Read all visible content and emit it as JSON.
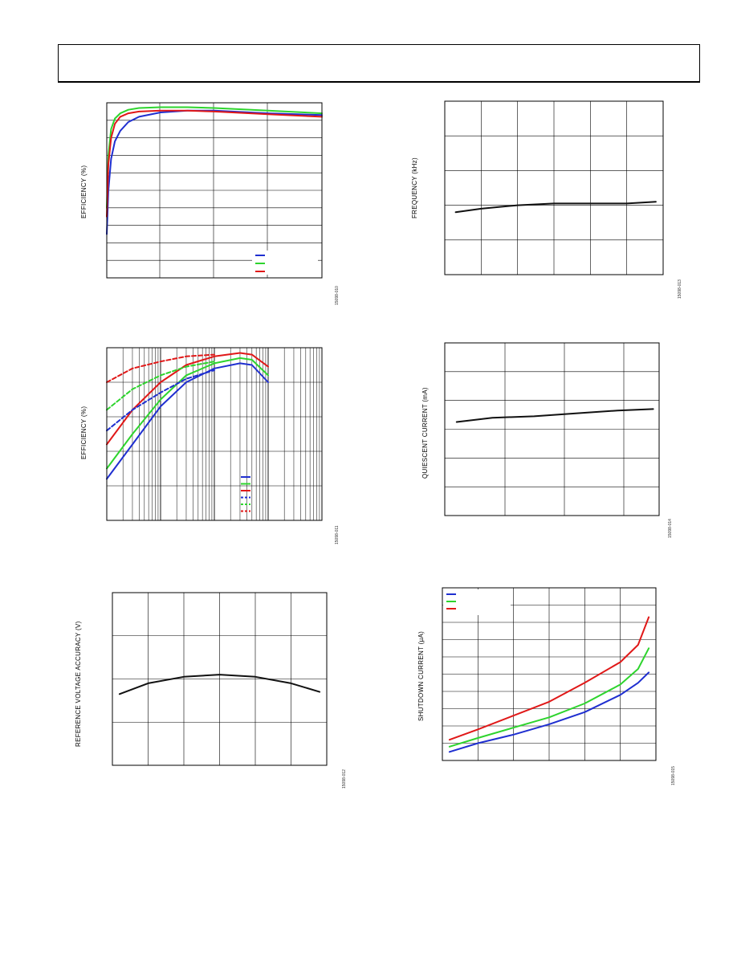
{
  "page": {
    "header_text": ""
  },
  "figures": [
    {
      "id": "fig10",
      "ylabel": "EFFICIENCY (%)",
      "fig_code": "15098-010"
    },
    {
      "id": "fig11",
      "ylabel": "EFFICIENCY (%)",
      "fig_code": "15098-011"
    },
    {
      "id": "fig12",
      "ylabel": "REFERENCE VOLTAGE ACCURACY (V)",
      "fig_code": "15098-012"
    },
    {
      "id": "fig13",
      "ylabel": "FREQUENCY (kHz)",
      "fig_code": "15098-013"
    },
    {
      "id": "fig14",
      "ylabel": "QUIESCENT CURRENT (mA)",
      "fig_code": "15098-014"
    },
    {
      "id": "fig15",
      "ylabel": "SHUTDOWN CURRENT (µA)",
      "fig_code": "15098-015"
    }
  ],
  "colors": {
    "blue": "#1f2fd0",
    "green": "#2ed42e",
    "red": "#e01818",
    "black": "#111111",
    "grid": "#000000"
  },
  "chart_data": [
    {
      "id": "fig10",
      "type": "line",
      "ylabel": "EFFICIENCY (%)",
      "xlabel": "",
      "grid": true,
      "legend": "bottom-right",
      "xscale": "linear",
      "xlim": [
        0,
        4
      ],
      "ylim": [
        0,
        10
      ],
      "series": [
        {
          "color": "blue",
          "x": [
            0,
            0.03,
            0.08,
            0.15,
            0.25,
            0.4,
            0.6,
            1.0,
            1.5,
            2.0,
            3.0,
            4.0
          ],
          "y": [
            2.5,
            5.0,
            6.8,
            7.8,
            8.4,
            8.9,
            9.2,
            9.45,
            9.55,
            9.55,
            9.4,
            9.3
          ]
        },
        {
          "color": "green",
          "x": [
            0,
            0.03,
            0.08,
            0.15,
            0.25,
            0.4,
            0.6,
            1.0,
            1.5,
            2.0,
            3.0,
            4.0
          ],
          "y": [
            4.0,
            7.0,
            8.5,
            9.1,
            9.4,
            9.6,
            9.7,
            9.75,
            9.75,
            9.7,
            9.55,
            9.4
          ]
        },
        {
          "color": "red",
          "x": [
            0,
            0.03,
            0.08,
            0.15,
            0.25,
            0.4,
            0.6,
            1.0,
            1.5,
            2.0,
            3.0,
            4.0
          ],
          "y": [
            3.5,
            6.5,
            8.0,
            8.8,
            9.2,
            9.4,
            9.5,
            9.55,
            9.55,
            9.5,
            9.35,
            9.2
          ]
        }
      ]
    },
    {
      "id": "fig11",
      "type": "line",
      "ylabel": "EFFICIENCY (%)",
      "xlabel": "",
      "grid": true,
      "legend": "bottom-right",
      "xscale": "log",
      "xlim": [
        0.1,
        1000
      ],
      "ylim": [
        0,
        5
      ],
      "series": [
        {
          "color": "blue",
          "dash": false,
          "x": [
            0.1,
            0.3,
            1,
            3,
            10,
            30,
            50,
            100
          ],
          "y": [
            1.2,
            2.2,
            3.3,
            4.0,
            4.4,
            4.55,
            4.5,
            4.0
          ]
        },
        {
          "color": "green",
          "dash": false,
          "x": [
            0.1,
            0.3,
            1,
            3,
            10,
            30,
            50,
            100
          ],
          "y": [
            1.5,
            2.5,
            3.5,
            4.2,
            4.55,
            4.7,
            4.65,
            4.2
          ]
        },
        {
          "color": "red",
          "dash": false,
          "x": [
            0.1,
            0.3,
            1,
            3,
            10,
            30,
            50,
            100
          ],
          "y": [
            2.2,
            3.2,
            4.0,
            4.5,
            4.75,
            4.85,
            4.8,
            4.45
          ]
        },
        {
          "color": "blue",
          "dash": true,
          "x": [
            0.1,
            0.3,
            1,
            3,
            10
          ],
          "y": [
            2.6,
            3.2,
            3.7,
            4.1,
            4.35
          ]
        },
        {
          "color": "green",
          "dash": true,
          "x": [
            0.1,
            0.3,
            1,
            3,
            10
          ],
          "y": [
            3.2,
            3.8,
            4.2,
            4.45,
            4.6
          ]
        },
        {
          "color": "red",
          "dash": true,
          "x": [
            0.1,
            0.3,
            1,
            3,
            10
          ],
          "y": [
            4.0,
            4.4,
            4.6,
            4.75,
            4.8
          ]
        }
      ]
    },
    {
      "id": "fig12",
      "type": "line",
      "ylabel": "REFERENCE VOLTAGE ACCURACY (V)",
      "xlabel": "",
      "grid": true,
      "legend": "none",
      "xscale": "linear",
      "xlim": [
        0,
        6
      ],
      "ylim": [
        0,
        4
      ],
      "series": [
        {
          "color": "black",
          "x": [
            0.2,
            1,
            2,
            3,
            4,
            5,
            5.8
          ],
          "y": [
            1.65,
            1.9,
            2.05,
            2.1,
            2.05,
            1.9,
            1.7
          ]
        }
      ]
    },
    {
      "id": "fig13",
      "type": "line",
      "ylabel": "FREQUENCY (kHz)",
      "xlabel": "",
      "grid": true,
      "legend": "none",
      "xscale": "linear",
      "xlim": [
        0,
        6
      ],
      "ylim": [
        0,
        5
      ],
      "series": [
        {
          "color": "black",
          "x": [
            0.3,
            1,
            2,
            3,
            4,
            5,
            5.8
          ],
          "y": [
            1.8,
            1.9,
            2.0,
            2.05,
            2.05,
            2.05,
            2.1
          ]
        }
      ]
    },
    {
      "id": "fig14",
      "type": "line",
      "ylabel": "QUIESCENT CURRENT (mA)",
      "xlabel": "",
      "grid": true,
      "legend": "none",
      "xscale": "linear",
      "xlim": [
        0,
        3.6
      ],
      "ylim": [
        0,
        6
      ],
      "series": [
        {
          "color": "black",
          "x": [
            0.2,
            0.8,
            1.5,
            2.2,
            2.9,
            3.5
          ],
          "y": [
            3.25,
            3.4,
            3.45,
            3.55,
            3.65,
            3.7
          ]
        }
      ]
    },
    {
      "id": "fig15",
      "type": "line",
      "ylabel": "SHUTDOWN CURRENT (µA)",
      "xlabel": "",
      "grid": true,
      "legend": "top-left",
      "xscale": "linear",
      "xlim": [
        0,
        6
      ],
      "ylim": [
        0,
        10
      ],
      "series": [
        {
          "color": "blue",
          "x": [
            0.2,
            1,
            2,
            3,
            4,
            5,
            5.5,
            5.8
          ],
          "y": [
            0.5,
            1.0,
            1.5,
            2.1,
            2.8,
            3.8,
            4.5,
            5.1
          ]
        },
        {
          "color": "green",
          "x": [
            0.2,
            1,
            2,
            3,
            4,
            5,
            5.5,
            5.8
          ],
          "y": [
            0.8,
            1.3,
            1.9,
            2.5,
            3.3,
            4.4,
            5.3,
            6.5
          ]
        },
        {
          "color": "red",
          "x": [
            0.2,
            1,
            2,
            3,
            4,
            5,
            5.5,
            5.8
          ],
          "y": [
            1.2,
            1.8,
            2.6,
            3.4,
            4.5,
            5.7,
            6.7,
            8.3
          ]
        }
      ]
    }
  ]
}
